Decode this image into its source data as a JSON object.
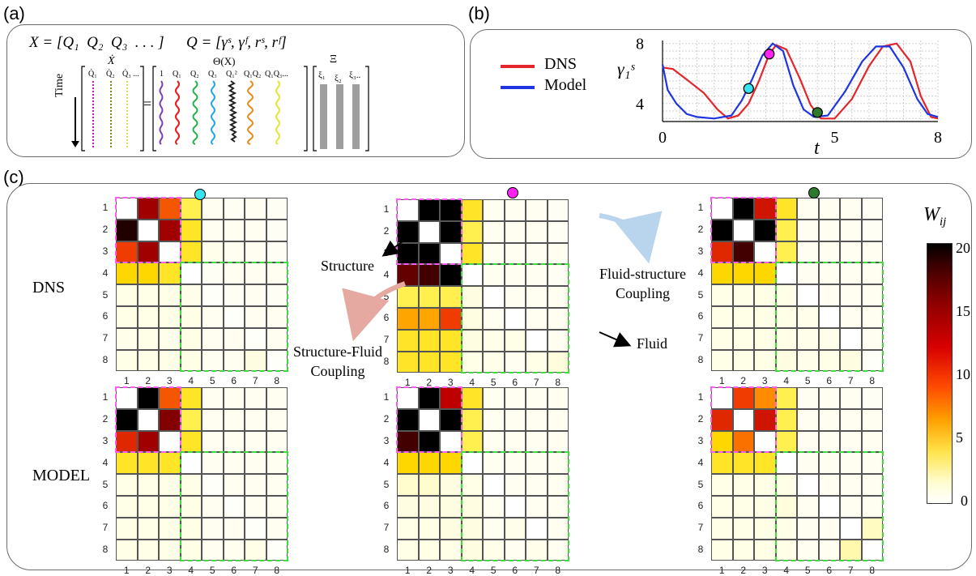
{
  "panel_a": {
    "label": "(a)",
    "eq_left": "X = [Q₁  Q₂  Q₃  . . . ]",
    "eq_right": "Q = [γˢ, γᶠ, rˢ, rᶠ]",
    "xdot": "Ẋ",
    "theta": "Θ(X)",
    "xi": "Ξ",
    "time_label": "Time",
    "xdot_cols": [
      "Q̇₁",
      "Q̇₂",
      "Q̇₃ ..."
    ],
    "theta_cols": [
      "1",
      "Q₁",
      "Q₂",
      "Q₃",
      "Q₁²",
      "Q₁Q₂",
      "Q₁Q₃..."
    ],
    "xi_cols": [
      "ξ₁",
      "ξ₂",
      "ξ₃.."
    ],
    "equals": "="
  },
  "panel_b": {
    "label": "(b)",
    "legend": [
      {
        "name": "DNS",
        "color": "#e3262b"
      },
      {
        "name": "Model",
        "color": "#1f35e0"
      }
    ],
    "ylabel": "γ₁ˢ",
    "xlabel": "t",
    "xticks": [
      "0",
      "5",
      "8"
    ],
    "yticks": [
      "8",
      "4"
    ],
    "markers": [
      {
        "color": "#36e4f0",
        "t": 2.5,
        "value": 5.0
      },
      {
        "color": "#ff22f2",
        "t": 3.1,
        "value": 7.3
      },
      {
        "color": "#2d7a2d",
        "t": 4.5,
        "value": 3.4
      }
    ]
  },
  "panel_c": {
    "label": "(c)",
    "row_labels": [
      "DNS",
      "MODEL"
    ],
    "annotations": {
      "structure": "Structure",
      "fluid": "Fluid",
      "fluid_structure": "Fluid-structure\nCoupling",
      "structure_fluid": "Structure-Fluid\nCoupling"
    },
    "axis_ticks": [
      "1",
      "2",
      "3",
      "4",
      "5",
      "6",
      "7",
      "8"
    ],
    "colorbar": {
      "title": "W",
      "subscript": "ij",
      "ticks": [
        "20",
        "15",
        "10",
        "5",
        "0"
      ]
    },
    "column_markers": [
      "#36e4f0",
      "#ff22f2",
      "#2d7a2d"
    ]
  },
  "chart_data": {
    "type": "heatmap",
    "vmin": 0,
    "vmax": 20,
    "size": 8,
    "matrices": [
      {
        "row": "DNS",
        "col": 0,
        "values": [
          [
            0,
            15,
            10,
            3,
            0.3,
            0.2,
            0.3,
            0.2
          ],
          [
            19,
            0,
            15,
            4,
            0.3,
            0.3,
            0.3,
            0.2
          ],
          [
            11,
            15,
            0,
            4,
            0.4,
            0.3,
            0.3,
            0.2
          ],
          [
            5,
            5,
            4,
            0,
            0.2,
            0.3,
            0.3,
            0.3
          ],
          [
            0.5,
            0.5,
            0.5,
            0.4,
            0.1,
            0.2,
            0.3,
            0.2
          ],
          [
            0.5,
            0.5,
            0.5,
            0.5,
            0.3,
            0.1,
            0.3,
            0.3
          ],
          [
            0.4,
            0.5,
            0.4,
            0.5,
            0.3,
            0.3,
            0.1,
            0.3
          ],
          [
            0.5,
            0.5,
            0.5,
            0.5,
            0.3,
            0.3,
            0.6,
            0.1
          ]
        ]
      },
      {
        "row": "DNS",
        "col": 1,
        "values": [
          [
            0,
            20,
            20,
            4,
            0.3,
            0.3,
            0.3,
            0.2
          ],
          [
            20,
            0,
            20,
            3,
            0.3,
            0.3,
            0.3,
            0.2
          ],
          [
            20,
            20,
            0,
            4,
            0.3,
            0.3,
            0.3,
            0.3
          ],
          [
            17,
            18,
            20,
            0,
            0.3,
            0.3,
            0.3,
            0.2
          ],
          [
            3,
            3,
            3,
            0.6,
            0,
            0.3,
            0.3,
            0.3
          ],
          [
            7,
            7,
            11,
            0.6,
            0.3,
            0,
            0.3,
            0.3
          ],
          [
            4,
            4,
            4,
            0.6,
            0.4,
            0.5,
            0,
            0.3
          ],
          [
            4,
            4,
            4,
            0.5,
            0.4,
            0.3,
            0.5,
            0.7
          ]
        ]
      },
      {
        "row": "DNS",
        "col": 2,
        "values": [
          [
            0,
            20,
            13,
            4,
            0.3,
            0.3,
            0.3,
            0.2
          ],
          [
            20,
            0,
            20,
            3,
            0.3,
            0.3,
            0.3,
            0.2
          ],
          [
            12,
            18,
            0,
            3,
            0.3,
            0.3,
            0.3,
            0.3
          ],
          [
            5,
            5,
            5,
            0,
            0.3,
            0.3,
            0.3,
            0.3
          ],
          [
            0.5,
            0.5,
            0.5,
            0.5,
            0,
            0.3,
            0.3,
            0.3
          ],
          [
            0.5,
            0.5,
            0.5,
            0.5,
            0.4,
            0,
            0.3,
            0.3
          ],
          [
            0.5,
            0.5,
            0.5,
            0.5,
            0.4,
            0.4,
            0,
            0.3
          ],
          [
            0.5,
            0.5,
            0.5,
            0.6,
            0.4,
            0.5,
            0.6,
            0.1
          ]
        ]
      },
      {
        "row": "MODEL",
        "col": 0,
        "values": [
          [
            0,
            20,
            10,
            4,
            0.3,
            0.3,
            0.3,
            0.3
          ],
          [
            20,
            0,
            16,
            3,
            0.3,
            0.3,
            0.3,
            0.3
          ],
          [
            12,
            15,
            0,
            4,
            0.3,
            0.3,
            0.3,
            0.3
          ],
          [
            4,
            4,
            4,
            0,
            0.3,
            0.3,
            0.3,
            0.3
          ],
          [
            0.5,
            0.5,
            0.5,
            0.5,
            0.1,
            0.3,
            0.3,
            0.3
          ],
          [
            0.5,
            0.5,
            0.5,
            0.5,
            0.3,
            0.1,
            0.3,
            0.3
          ],
          [
            0.5,
            0.5,
            0.5,
            0.5,
            0.3,
            0.3,
            0.1,
            0.3
          ],
          [
            0.5,
            0.5,
            0.5,
            0.5,
            0.3,
            0.3,
            0.5,
            0.1
          ]
        ]
      },
      {
        "row": "MODEL",
        "col": 1,
        "values": [
          [
            0,
            20,
            14,
            4,
            0.3,
            0.3,
            0.3,
            0.3
          ],
          [
            20,
            0,
            20,
            3,
            0.3,
            0.3,
            0.3,
            0.3
          ],
          [
            18,
            20,
            0,
            3,
            0.3,
            0.3,
            0.3,
            0.3
          ],
          [
            5,
            5,
            5,
            0,
            0.3,
            0.3,
            0.3,
            0.3
          ],
          [
            1,
            1,
            0.6,
            0.5,
            0,
            0.3,
            0.3,
            0.3
          ],
          [
            0.6,
            0.6,
            0.6,
            0.6,
            0.3,
            0,
            0.3,
            0.3
          ],
          [
            0.5,
            0.5,
            0.6,
            0.6,
            0.3,
            0.4,
            0,
            0.3
          ],
          [
            0.5,
            0.5,
            0.5,
            0.6,
            0.4,
            0.3,
            0.4,
            0.3
          ]
        ]
      },
      {
        "row": "MODEL",
        "col": 2,
        "values": [
          [
            0,
            11,
            8,
            3,
            0.3,
            0.3,
            0.3,
            0.2
          ],
          [
            12,
            0,
            13,
            3,
            0.3,
            0.3,
            0.3,
            0.3
          ],
          [
            5,
            9,
            0,
            3,
            0.3,
            0.3,
            0.3,
            0.3
          ],
          [
            4,
            4,
            4,
            0,
            0.3,
            0.3,
            0.3,
            0.3
          ],
          [
            0.5,
            0.5,
            0.5,
            0.5,
            0,
            0.3,
            0.3,
            0.3
          ],
          [
            0.5,
            0.5,
            0.5,
            0.7,
            0.3,
            0,
            0.3,
            0.3
          ],
          [
            0.5,
            0.5,
            0.5,
            0.5,
            0.3,
            0.3,
            0,
            1.2
          ],
          [
            0.5,
            0.5,
            0.5,
            0.5,
            0.3,
            0.3,
            1.5,
            0
          ]
        ]
      }
    ],
    "time_series": {
      "type": "line",
      "xlim": [
        0,
        8
      ],
      "ylim": [
        2.8,
        8.2
      ],
      "series": [
        {
          "name": "DNS",
          "x": [
            0,
            0.3,
            0.7,
            1.2,
            1.6,
            1.9,
            2.2,
            2.5,
            2.8,
            3.1,
            3.3,
            3.6,
            4.0,
            4.3,
            4.6,
            5.0,
            5.5,
            6.0,
            6.4,
            6.8,
            7.2,
            7.5,
            7.8,
            8.0
          ],
          "y": [
            6.4,
            6.3,
            5.6,
            4.7,
            3.6,
            3.0,
            3.2,
            4.0,
            5.5,
            7.3,
            7.9,
            7.6,
            5.6,
            3.9,
            3.0,
            3.0,
            4.3,
            6.5,
            7.8,
            8.0,
            6.8,
            4.5,
            3.1,
            3.0
          ]
        },
        {
          "name": "Model",
          "x": [
            0,
            0.15,
            0.4,
            0.7,
            1.0,
            1.5,
            2.0,
            2.3,
            2.6,
            2.9,
            3.2,
            3.5,
            3.8,
            4.1,
            4.4,
            4.8,
            5.3,
            5.8,
            6.2,
            6.6,
            7.0,
            7.4,
            7.7,
            8.0
          ],
          "y": [
            6.6,
            4.9,
            4.0,
            3.3,
            3.1,
            3.0,
            3.2,
            4.2,
            5.6,
            7.2,
            8.0,
            7.5,
            5.2,
            3.6,
            3.1,
            3.2,
            4.8,
            6.8,
            7.8,
            7.8,
            6.4,
            4.3,
            3.3,
            3.1
          ]
        }
      ]
    }
  }
}
